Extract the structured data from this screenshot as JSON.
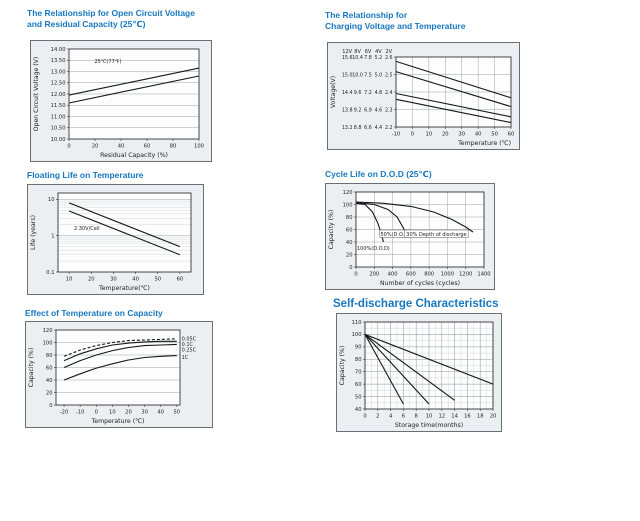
{
  "colors": {
    "title_blue": "#1877be",
    "line_black": "#15161a"
  },
  "chart_data": [
    {
      "type": "line",
      "title": "The Relationship for Open Circuit Voltage\nand Residual Capacity (25℃)",
      "xlabel": "Residual Capacity (%)",
      "ylabel": "Open Circuit Voltage (V)",
      "x_range": [
        0,
        100
      ],
      "x_ticks": [
        [
          0,
          "0"
        ],
        [
          20,
          "20"
        ],
        [
          40,
          "40"
        ],
        [
          60,
          "60"
        ],
        [
          80,
          "80"
        ],
        [
          100,
          "100"
        ]
      ],
      "y_range": [
        10,
        14
      ],
      "y_ticks": [
        [
          14,
          "14.00"
        ],
        [
          13.5,
          "13.50"
        ],
        [
          13,
          "13.00"
        ],
        [
          12.5,
          "12.50"
        ],
        [
          12,
          "12.00"
        ],
        [
          11.5,
          "11.50"
        ],
        [
          11,
          "11.00"
        ],
        [
          10.5,
          "10.50"
        ],
        [
          10,
          "10.00"
        ]
      ],
      "grid": {
        "h": true,
        "v": false
      },
      "series": [
        {
          "name": "ocv-upper",
          "points": [
            [
              0,
              11.95
            ],
            [
              100,
              13.15
            ]
          ]
        },
        {
          "name": "ocv-lower",
          "points": [
            [
              0,
              11.6
            ],
            [
              100,
              12.8
            ]
          ]
        }
      ],
      "annotations": [
        {
          "text": "25℃(77℉)",
          "x": 30,
          "y": 13.45
        }
      ]
    },
    {
      "type": "line",
      "title": "The Relationship for\nCharging Voltage and Temperature",
      "xlabel": "Temperature (℃)",
      "xlabel_align": "right",
      "ylabel": "Voltage(V)",
      "x_range": [
        -10,
        60
      ],
      "x_ticks": [
        [
          -10,
          "-10"
        ],
        [
          0,
          "0"
        ],
        [
          10,
          "10"
        ],
        [
          20,
          "20"
        ],
        [
          30,
          "30"
        ],
        [
          40,
          "40"
        ],
        [
          50,
          "50"
        ],
        [
          60,
          "60"
        ]
      ],
      "y_range": [
        13.2,
        15.6
      ],
      "y_ticks": [
        [
          15.6,
          ""
        ],
        [
          15.0,
          ""
        ],
        [
          14.4,
          ""
        ],
        [
          13.8,
          ""
        ],
        [
          13.2,
          ""
        ]
      ],
      "y_columns": {
        "headers": [
          "12V",
          "8V",
          "6V",
          "4V",
          "2V"
        ],
        "rows": [
          [
            "15.6",
            "10.4",
            "7.8",
            "5.2",
            "2.6"
          ],
          [
            "15.0",
            "10.0",
            "7.5",
            "5.0",
            "2.5"
          ],
          [
            "14.4",
            "9.6",
            "7.2",
            "4.8",
            "2.4"
          ],
          [
            "13.8",
            "9.2",
            "6.9",
            "4.6",
            "2.3"
          ],
          [
            "13.2",
            "8.8",
            "6.6",
            "4.4",
            "2.2"
          ]
        ]
      },
      "grid": {
        "h": true,
        "v": true
      },
      "series": [
        {
          "name": "cycle-use-upper",
          "points": [
            [
              -10,
              15.45
            ],
            [
              60,
              14.2
            ]
          ]
        },
        {
          "name": "cycle-use-lower",
          "points": [
            [
              -10,
              15.1
            ],
            [
              60,
              13.9
            ]
          ]
        },
        {
          "name": "float-use-upper",
          "points": [
            [
              -10,
              14.35
            ],
            [
              60,
              13.55
            ]
          ]
        },
        {
          "name": "float-use-lower",
          "points": [
            [
              -10,
              14.15
            ],
            [
              60,
              13.35
            ]
          ]
        }
      ],
      "annotations": []
    },
    {
      "type": "line",
      "title": "Floating Life on Temperature",
      "xlabel": "Temperature(℃)",
      "ylabel": "Life (years)",
      "x_range": [
        5,
        65
      ],
      "x_ticks": [
        [
          10,
          "10"
        ],
        [
          20,
          "20"
        ],
        [
          30,
          "30"
        ],
        [
          40,
          "40"
        ],
        [
          50,
          "50"
        ],
        [
          60,
          "60"
        ]
      ],
      "y_range": [
        0.1,
        15
      ],
      "y_scale": "log",
      "y_ticks": [
        [
          10,
          "10"
        ],
        [
          1,
          "1"
        ],
        [
          0.1,
          "0.1"
        ]
      ],
      "grid": {
        "h": true,
        "v": false,
        "log_minor": true
      },
      "series": [
        {
          "name": "life-upper",
          "points": [
            [
              10,
              8
            ],
            [
              60,
              0.5
            ]
          ]
        },
        {
          "name": "life-lower",
          "points": [
            [
              10,
              4.8
            ],
            [
              60,
              0.3
            ]
          ]
        }
      ],
      "annotations": [
        {
          "text": "2.30V/Cell",
          "x": 18,
          "y": 1.6
        }
      ]
    },
    {
      "type": "line",
      "title": "Cycle Life on D.O.D (25℃)",
      "xlabel": "Number of cycles (cycles)",
      "ylabel": "Capacity (%)",
      "x_range": [
        0,
        1400
      ],
      "x_ticks": [
        [
          0,
          "0"
        ],
        [
          200,
          "200"
        ],
        [
          400,
          "400"
        ],
        [
          600,
          "600"
        ],
        [
          800,
          "800"
        ],
        [
          1000,
          "1000"
        ],
        [
          1200,
          "1200"
        ],
        [
          1400,
          "1400"
        ]
      ],
      "y_range": [
        0,
        120
      ],
      "y_ticks": [
        [
          120,
          "120"
        ],
        [
          100,
          "100"
        ],
        [
          80,
          "80"
        ],
        [
          60,
          "60"
        ],
        [
          40,
          "40"
        ],
        [
          20,
          "20"
        ],
        [
          0,
          "0"
        ]
      ],
      "grid": {
        "h": true,
        "v": true
      },
      "series": [
        {
          "name": "dod-100",
          "points": [
            [
              0,
              102
            ],
            [
              100,
              100
            ],
            [
              180,
              88
            ],
            [
              240,
              70
            ],
            [
              280,
              52
            ],
            [
              300,
              40
            ]
          ]
        },
        {
          "name": "dod-50",
          "points": [
            [
              0,
              103
            ],
            [
              200,
              100
            ],
            [
              350,
              92
            ],
            [
              450,
              80
            ],
            [
              520,
              62
            ],
            [
              560,
              48
            ]
          ]
        },
        {
          "name": "dod-30",
          "points": [
            [
              0,
              104
            ],
            [
              300,
              102
            ],
            [
              600,
              97
            ],
            [
              850,
              88
            ],
            [
              1050,
              76
            ],
            [
              1200,
              64
            ],
            [
              1280,
              56
            ]
          ]
        }
      ],
      "annotations": [
        {
          "text": "100%(D.O.D)",
          "x": 190,
          "y": 30
        },
        {
          "text": "50%(D.O.D)",
          "x": 430,
          "y": 52,
          "box": true
        },
        {
          "text": "30% Depth of discharge",
          "x": 880,
          "y": 52,
          "box": true
        }
      ]
    },
    {
      "type": "line",
      "title": "Effect of Temperature on Capacity",
      "xlabel": "Temperature (℃)",
      "ylabel": "Capacity (%)",
      "x_range": [
        -25,
        52
      ],
      "x_ticks": [
        [
          -20,
          "-20"
        ],
        [
          -10,
          "-10"
        ],
        [
          0,
          "0"
        ],
        [
          10,
          "10"
        ],
        [
          20,
          "20"
        ],
        [
          30,
          "30"
        ],
        [
          40,
          "40"
        ],
        [
          50,
          "50"
        ]
      ],
      "y_range": [
        0,
        120
      ],
      "y_ticks": [
        [
          120,
          "120"
        ],
        [
          100,
          "100"
        ],
        [
          80,
          "80"
        ],
        [
          60,
          "60"
        ],
        [
          40,
          "40"
        ],
        [
          20,
          "20"
        ],
        [
          0,
          "0"
        ]
      ],
      "grid": {
        "h": true,
        "v": false
      },
      "series": [
        {
          "name": "rate-0.05C",
          "dash": "3,2",
          "points": [
            [
              -20,
              78
            ],
            [
              -10,
              88
            ],
            [
              0,
              95
            ],
            [
              10,
              100
            ],
            [
              20,
              103
            ],
            [
              30,
              104
            ],
            [
              40,
              105
            ],
            [
              50,
              106
            ]
          ]
        },
        {
          "name": "rate-0.1C",
          "points": [
            [
              -20,
              71
            ],
            [
              -10,
              82
            ],
            [
              0,
              90
            ],
            [
              10,
              96
            ],
            [
              20,
              99
            ],
            [
              30,
              101
            ],
            [
              40,
              102
            ],
            [
              50,
              102
            ]
          ]
        },
        {
          "name": "rate-0.25C",
          "points": [
            [
              -20,
              60
            ],
            [
              -10,
              71
            ],
            [
              0,
              80
            ],
            [
              10,
              87
            ],
            [
              20,
              92
            ],
            [
              30,
              95
            ],
            [
              40,
              96
            ],
            [
              50,
              97
            ]
          ]
        },
        {
          "name": "rate-1C",
          "points": [
            [
              -20,
              40
            ],
            [
              -10,
              50
            ],
            [
              0,
              59
            ],
            [
              10,
              66
            ],
            [
              20,
              72
            ],
            [
              30,
              76
            ],
            [
              40,
              78
            ],
            [
              50,
              79
            ]
          ]
        }
      ],
      "annotations": [
        {
          "text": "0.05C",
          "x": 53,
          "y": 106,
          "anchor": "start"
        },
        {
          "text": "0.1C",
          "x": 53,
          "y": 97,
          "anchor": "start"
        },
        {
          "text": "0.25C",
          "x": 53,
          "y": 88,
          "anchor": "start"
        },
        {
          "text": "1C",
          "x": 53,
          "y": 76,
          "anchor": "start"
        }
      ]
    },
    {
      "type": "line",
      "title": "Self-discharge Characteristics",
      "xlabel": "Storage time(months)",
      "ylabel": "Capacity (%)",
      "x_range": [
        0,
        20
      ],
      "x_ticks": [
        [
          0,
          "0"
        ],
        [
          2,
          "2"
        ],
        [
          4,
          "4"
        ],
        [
          6,
          "6"
        ],
        [
          8,
          "8"
        ],
        [
          10,
          "10"
        ],
        [
          12,
          "12"
        ],
        [
          14,
          "14"
        ],
        [
          16,
          "16"
        ],
        [
          18,
          "18"
        ],
        [
          20,
          "20"
        ]
      ],
      "y_range": [
        40,
        110
      ],
      "y_ticks": [
        [
          110,
          "110"
        ],
        [
          100,
          "100"
        ],
        [
          90,
          "90"
        ],
        [
          80,
          "80"
        ],
        [
          70,
          "70"
        ],
        [
          60,
          "60"
        ],
        [
          50,
          "50"
        ],
        [
          40,
          "40"
        ]
      ],
      "grid": {
        "h": true,
        "v": true,
        "x_minor": 1,
        "y_minor": 5
      },
      "series": [
        {
          "name": "storage-line-1",
          "points": [
            [
              0,
              100
            ],
            [
              6,
              44
            ]
          ]
        },
        {
          "name": "storage-line-2",
          "points": [
            [
              0,
              100
            ],
            [
              10,
              44
            ]
          ]
        },
        {
          "name": "storage-line-3",
          "points": [
            [
              0,
              100
            ],
            [
              14,
              47
            ]
          ]
        },
        {
          "name": "storage-line-4",
          "points": [
            [
              0,
              100
            ],
            [
              20,
              60
            ]
          ]
        }
      ],
      "annotations": []
    }
  ]
}
